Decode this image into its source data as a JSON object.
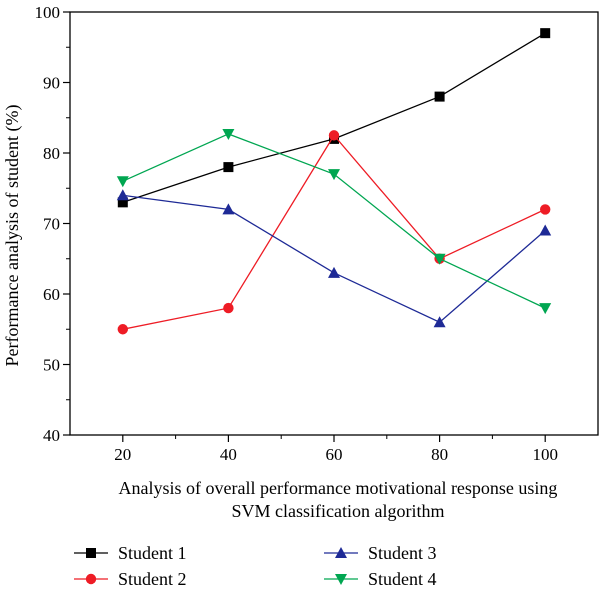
{
  "chart_data": {
    "type": "line",
    "title": "",
    "xlabel_lines": [
      "Analysis of overall performance motivational response using",
      "SVM classification algorithm"
    ],
    "ylabel": "Performance analysis of student (%)",
    "x": [
      20,
      40,
      60,
      80,
      100
    ],
    "xlim": [
      10,
      110
    ],
    "ylim": [
      40,
      100
    ],
    "xticks": [
      20,
      40,
      60,
      80,
      100
    ],
    "yticks": [
      40,
      50,
      60,
      70,
      80,
      90,
      100
    ],
    "grid": false,
    "legend_position": "bottom",
    "series": [
      {
        "name": "Student 1",
        "color": "#000000",
        "marker": "square",
        "values": [
          73,
          78,
          82,
          88,
          97
        ]
      },
      {
        "name": "Student 2",
        "color": "#ee1c25",
        "marker": "circle",
        "values": [
          55,
          58,
          82.5,
          65,
          72
        ]
      },
      {
        "name": "Student 3",
        "color": "#1e2a96",
        "marker": "triangle-up",
        "values": [
          74,
          72,
          63,
          56,
          69
        ]
      },
      {
        "name": "Student 4",
        "color": "#00a651",
        "marker": "triangle-down",
        "values": [
          76,
          82.7,
          77,
          65,
          58
        ]
      }
    ]
  }
}
